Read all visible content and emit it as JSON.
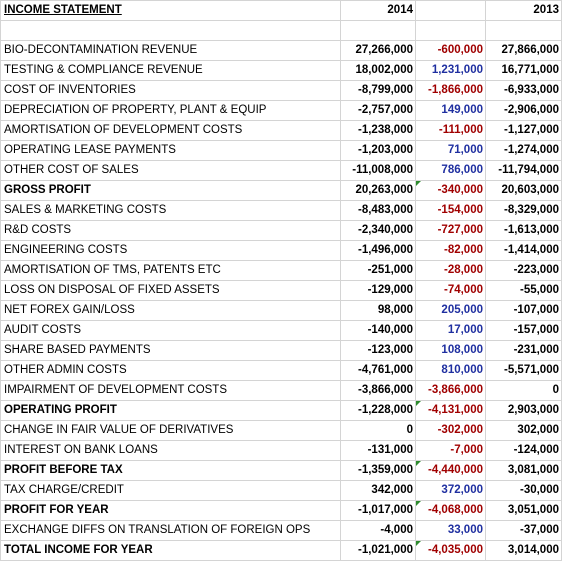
{
  "header": {
    "title": "INCOME STATEMENT",
    "col_2014": "2014",
    "col_2013": "2013"
  },
  "rows": [
    {
      "label": "BIO-DECONTAMINATION REVENUE",
      "v2014": "27,266,000",
      "diff": "-600,000",
      "v2013": "27,866,000",
      "bold": false,
      "diff_sign": "neg",
      "marker": false
    },
    {
      "label": "TESTING & COMPLIANCE REVENUE",
      "v2014": "18,002,000",
      "diff": "1,231,000",
      "v2013": "16,771,000",
      "bold": false,
      "diff_sign": "pos",
      "marker": false
    },
    {
      "label": "COST OF INVENTORIES",
      "v2014": "-8,799,000",
      "diff": "-1,866,000",
      "v2013": "-6,933,000",
      "bold": false,
      "diff_sign": "neg",
      "marker": false
    },
    {
      "label": "DEPRECIATION OF PROPERTY, PLANT & EQUIP",
      "v2014": "-2,757,000",
      "diff": "149,000",
      "v2013": "-2,906,000",
      "bold": false,
      "diff_sign": "pos",
      "marker": false
    },
    {
      "label": "AMORTISATION OF DEVELOPMENT COSTS",
      "v2014": "-1,238,000",
      "diff": "-111,000",
      "v2013": "-1,127,000",
      "bold": false,
      "diff_sign": "neg",
      "marker": false
    },
    {
      "label": "OPERATING LEASE PAYMENTS",
      "v2014": "-1,203,000",
      "diff": "71,000",
      "v2013": "-1,274,000",
      "bold": false,
      "diff_sign": "pos",
      "marker": false
    },
    {
      "label": "OTHER COST OF SALES",
      "v2014": "-11,008,000",
      "diff": "786,000",
      "v2013": "-11,794,000",
      "bold": false,
      "diff_sign": "pos",
      "marker": false
    },
    {
      "label": "GROSS PROFIT",
      "v2014": "20,263,000",
      "diff": "-340,000",
      "v2013": "20,603,000",
      "bold": true,
      "diff_sign": "neg",
      "marker": true
    },
    {
      "label": "SALES & MARKETING COSTS",
      "v2014": "-8,483,000",
      "diff": "-154,000",
      "v2013": "-8,329,000",
      "bold": false,
      "diff_sign": "neg",
      "marker": false
    },
    {
      "label": "R&D COSTS",
      "v2014": "-2,340,000",
      "diff": "-727,000",
      "v2013": "-1,613,000",
      "bold": false,
      "diff_sign": "neg",
      "marker": false
    },
    {
      "label": "ENGINEERING COSTS",
      "v2014": "-1,496,000",
      "diff": "-82,000",
      "v2013": "-1,414,000",
      "bold": false,
      "diff_sign": "neg",
      "marker": false
    },
    {
      "label": "AMORTISATION OF TMS, PATENTS ETC",
      "v2014": "-251,000",
      "diff": "-28,000",
      "v2013": "-223,000",
      "bold": false,
      "diff_sign": "neg",
      "marker": false
    },
    {
      "label": "LOSS ON DISPOSAL OF FIXED ASSETS",
      "v2014": "-129,000",
      "diff": "-74,000",
      "v2013": "-55,000",
      "bold": false,
      "diff_sign": "neg",
      "marker": false
    },
    {
      "label": "NET FOREX GAIN/LOSS",
      "v2014": "98,000",
      "diff": "205,000",
      "v2013": "-107,000",
      "bold": false,
      "diff_sign": "pos",
      "marker": false
    },
    {
      "label": "AUDIT COSTS",
      "v2014": "-140,000",
      "diff": "17,000",
      "v2013": "-157,000",
      "bold": false,
      "diff_sign": "pos",
      "marker": false
    },
    {
      "label": "SHARE BASED PAYMENTS",
      "v2014": "-123,000",
      "diff": "108,000",
      "v2013": "-231,000",
      "bold": false,
      "diff_sign": "pos",
      "marker": false
    },
    {
      "label": "OTHER ADMIN COSTS",
      "v2014": "-4,761,000",
      "diff": "810,000",
      "v2013": "-5,571,000",
      "bold": false,
      "diff_sign": "pos",
      "marker": false
    },
    {
      "label": "IMPAIRMENT OF DEVELOPMENT COSTS",
      "v2014": "-3,866,000",
      "diff": "-3,866,000",
      "v2013": "0",
      "bold": false,
      "diff_sign": "neg",
      "marker": false
    },
    {
      "label": "OPERATING PROFIT",
      "v2014": "-1,228,000",
      "diff": "-4,131,000",
      "v2013": "2,903,000",
      "bold": true,
      "diff_sign": "neg",
      "marker": true
    },
    {
      "label": "CHANGE IN FAIR VALUE OF DERIVATIVES",
      "v2014": "0",
      "diff": "-302,000",
      "v2013": "302,000",
      "bold": false,
      "diff_sign": "neg",
      "marker": false
    },
    {
      "label": "INTEREST ON BANK LOANS",
      "v2014": "-131,000",
      "diff": "-7,000",
      "v2013": "-124,000",
      "bold": false,
      "diff_sign": "neg",
      "marker": false
    },
    {
      "label": "PROFIT BEFORE TAX",
      "v2014": "-1,359,000",
      "diff": "-4,440,000",
      "v2013": "3,081,000",
      "bold": true,
      "diff_sign": "neg",
      "marker": true
    },
    {
      "label": "TAX CHARGE/CREDIT",
      "v2014": "342,000",
      "diff": "372,000",
      "v2013": "-30,000",
      "bold": false,
      "diff_sign": "pos",
      "marker": false
    },
    {
      "label": "PROFIT FOR YEAR",
      "v2014": "-1,017,000",
      "diff": "-4,068,000",
      "v2013": "3,051,000",
      "bold": true,
      "diff_sign": "neg",
      "marker": true
    },
    {
      "label": "EXCHANGE DIFFS ON TRANSLATION OF FOREIGN OPS",
      "v2014": "-4,000",
      "diff": "33,000",
      "v2013": "-37,000",
      "bold": false,
      "diff_sign": "pos",
      "marker": false
    },
    {
      "label": "TOTAL INCOME FOR YEAR",
      "v2014": "-1,021,000",
      "diff": "-4,035,000",
      "v2013": "3,014,000",
      "bold": true,
      "diff_sign": "neg",
      "marker": true
    }
  ],
  "colors": {
    "positive_diff": "#1f2fa0",
    "negative_diff": "#a00000",
    "marker": "#2e8b2e",
    "gridline": "#d4d4d4"
  }
}
